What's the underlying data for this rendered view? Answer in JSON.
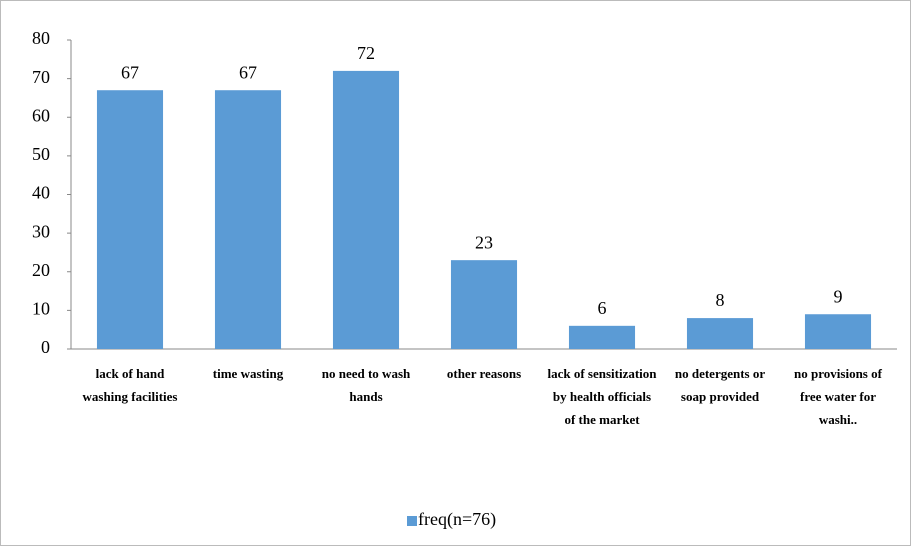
{
  "chart_data": {
    "type": "bar",
    "categories": [
      "lack of hand washing facilities",
      "time wasting",
      "no need to wash hands",
      "other reasons",
      "lack of sensitization by health officials of the market",
      "no detergents or soap provided",
      "no provisions of free water for washi.."
    ],
    "series": [
      {
        "name": "freq(n=76)",
        "color": "#5b9bd5",
        "values": [
          67,
          67,
          72,
          23,
          6,
          8,
          9
        ]
      }
    ],
    "ylim": [
      0,
      80
    ],
    "yticks": [
      0,
      10,
      20,
      30,
      40,
      50,
      60,
      70,
      80
    ],
    "legend": "bottom"
  }
}
